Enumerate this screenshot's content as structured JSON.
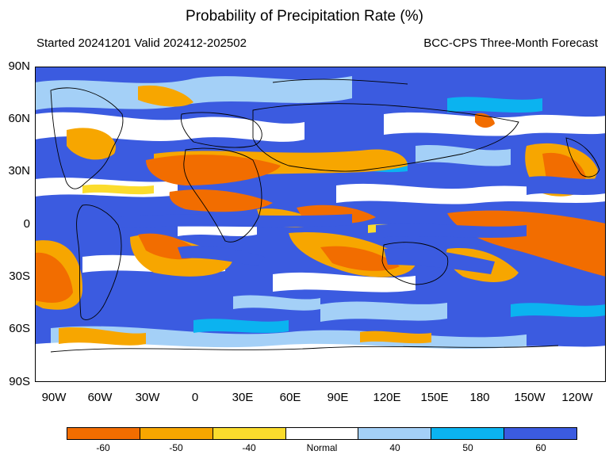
{
  "header": {
    "title": "Probability of Precipitation Rate (%)",
    "started": "Started 20241201  Valid 202412-202502",
    "model": "BCC-CPS Three-Month Forecast"
  },
  "map": {
    "lat_labels": [
      "90N",
      "60N",
      "30N",
      "0",
      "30S",
      "60S",
      "90S"
    ],
    "lon_labels": [
      "90W",
      "60W",
      "30W",
      "0",
      "30E",
      "60E",
      "90E",
      "120E",
      "150E",
      "180",
      "150W",
      "120W"
    ]
  },
  "legend": {
    "bins": [
      {
        "label": "",
        "color": "#f26d00"
      },
      {
        "label": "",
        "color": "#f7a600"
      },
      {
        "label": "",
        "color": "#fbdc2d"
      },
      {
        "label": "",
        "color": "#ffffff"
      },
      {
        "label": "",
        "color": "#a4d0f7"
      },
      {
        "label": "",
        "color": "#0bb3f0"
      },
      {
        "label": "",
        "color": "#3b5be0"
      }
    ],
    "labels": [
      "-60",
      "-50",
      "-40",
      "Normal",
      "40",
      "50",
      "60"
    ]
  },
  "palette": {
    "strong_dry": "#f26d00",
    "dry": "#f7a600",
    "weak_dry": "#fbdc2d",
    "normal": "#ffffff",
    "weak_wet": "#a4d0f7",
    "wet": "#0bb3f0",
    "strong_wet": "#3b5be0"
  }
}
